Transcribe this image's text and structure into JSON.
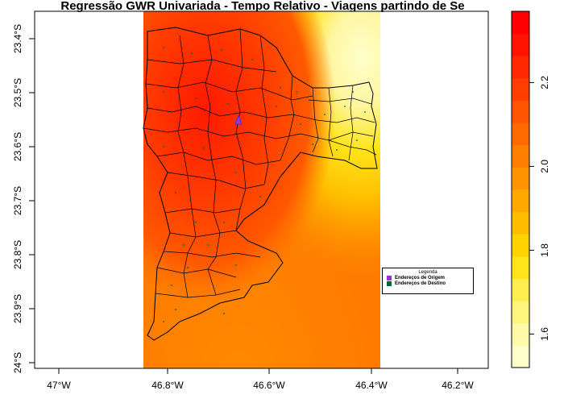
{
  "title": "Regressão GWR Univariada - Tempo Relativo - Viagens partindo de Se",
  "x_ticks": [
    "47°W",
    "46.8°W",
    "46.6°W",
    "46.4°W",
    "46.2°W"
  ],
  "y_ticks": [
    "23.4°S",
    "23.5°S",
    "23.6°S",
    "23.7°S",
    "23.8°S",
    "23.9°S",
    "24°S"
  ],
  "colorbar": {
    "ticks": [
      "1.6",
      "1.8",
      "2.0",
      "2.2"
    ],
    "colors": [
      "#ffffcc",
      "#fffaa8",
      "#fff47c",
      "#ffee4e",
      "#ffe419",
      "#ffd200",
      "#ffbd00",
      "#ffa800",
      "#ff9300",
      "#ff7f00",
      "#ff6a00",
      "#ff5400",
      "#ff3e00",
      "#ff2800",
      "#ff1200",
      "#ff0000"
    ]
  },
  "legend": {
    "title": "Legenda",
    "items": [
      {
        "label": "Endereços de Origem",
        "color": "#9933cc"
      },
      {
        "label": "Endereços de Destino",
        "color": "#006633"
      }
    ]
  },
  "chart_data": {
    "type": "heatmap",
    "title": "Regressão GWR Univariada - Tempo Relativo - Viagens partindo de Se",
    "xlabel": "",
    "ylabel": "",
    "xlim": [
      -47.07,
      -46.14
    ],
    "ylim": [
      -24.01,
      -23.35
    ],
    "raster_extent_lon": [
      -46.825,
      -46.355
    ],
    "raster_extent_lat": [
      -24.01,
      -23.35
    ],
    "value_range": [
      1.52,
      2.37
    ],
    "colorbar_ticks": [
      1.6,
      1.8,
      2.0,
      2.2
    ],
    "origin_point": {
      "lon": -46.633,
      "lat": -23.55
    },
    "grid": false,
    "legend_position": "bottom-right"
  }
}
